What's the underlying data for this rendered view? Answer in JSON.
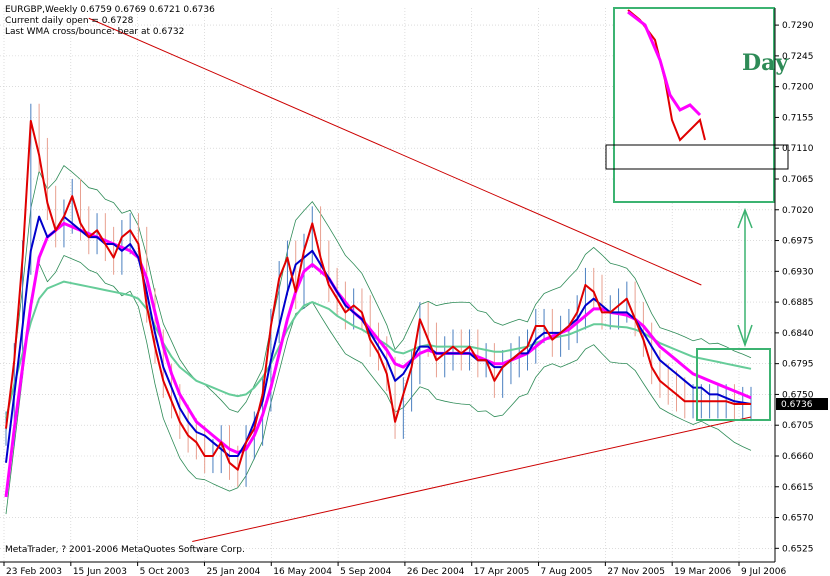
{
  "header": {
    "line1": "EURGBP,Weekly  0.6759 0.6769 0.6721 0.6736",
    "line2": "Current daily open = 0.6728",
    "line3": "Last WMA cross/bounce: bear at 0.6732"
  },
  "footer": {
    "copyright": "MetaTrader, ? 2001-2006 MetaQuotes Software Corp."
  },
  "inset": {
    "label": "Day"
  },
  "last_price_label": "0.6736",
  "colors": {
    "background": "#FFFFFF",
    "grid": "#C8C8C8",
    "candle": "#4A7FC0",
    "candle_bear": "#E8A090",
    "wma_fast": "#E00000",
    "wma_slow": "#0000CC",
    "wma_mid": "#FF00FF",
    "sma_long": "#66CC99",
    "bands": "#2E8B57",
    "trendline": "#CC0000",
    "box": "#3CB371"
  },
  "chart_data": {
    "type": "line",
    "symbol": "EURGBP",
    "timeframe": "Weekly",
    "ylim": [
      0.6505,
      0.7315
    ],
    "grid": true,
    "y_ticks": [
      "0.7290",
      "0.7245",
      "0.7200",
      "0.7155",
      "0.7110",
      "0.7065",
      "0.7020",
      "0.6975",
      "0.6930",
      "0.6885",
      "0.6840",
      "0.6795",
      "0.6750",
      "0.6705",
      "0.6660",
      "0.6615",
      "0.6570",
      "0.6525"
    ],
    "x_ticks": [
      "23 Feb 2003",
      "15 Jun 2003",
      "5 Oct 2003",
      "25 Jan 2004",
      "16 May 2004",
      "5 Sep 2004",
      "26 Dec 2004",
      "17 Apr 2005",
      "7 Aug 2005",
      "27 Nov 2005",
      "19 Mar 2006",
      "9 Jul 2006"
    ],
    "x": [
      0,
      2,
      4,
      6,
      8,
      10,
      12,
      14,
      16,
      18,
      20,
      22,
      24,
      26,
      28,
      30,
      32,
      34,
      36,
      38,
      40,
      42,
      44,
      46,
      48,
      50,
      52,
      54,
      56,
      58,
      60,
      62,
      64,
      66,
      68,
      70,
      72,
      74,
      76,
      78,
      80,
      82,
      84,
      86,
      88,
      90,
      92,
      94,
      96,
      98,
      100,
      102,
      104,
      106,
      108,
      110,
      112,
      114,
      116,
      118,
      120,
      122,
      124,
      126,
      128,
      130,
      132,
      134,
      136,
      138,
      140,
      142,
      144,
      146,
      148,
      150,
      152,
      154,
      156,
      158,
      160,
      162,
      164,
      166,
      168,
      170,
      172,
      174,
      176,
      178,
      180
    ],
    "series": [
      {
        "name": "",
        "values": [
          0.67,
          0.68,
          0.695,
          0.715,
          0.71,
          0.703,
          0.699,
          0.701,
          0.704,
          0.7,
          0.698,
          0.699,
          0.697,
          0.695,
          0.698,
          0.699,
          0.697,
          0.688,
          0.682,
          0.677,
          0.674,
          0.671,
          0.669,
          0.668,
          0.666,
          0.666,
          0.668,
          0.665,
          0.664,
          0.668,
          0.67,
          0.675,
          0.685,
          0.692,
          0.695,
          0.69,
          0.696,
          0.7,
          0.695,
          0.691,
          0.689,
          0.687,
          0.688,
          0.687,
          0.683,
          0.681,
          0.678,
          0.671,
          0.675,
          0.679,
          0.686,
          0.683,
          0.68,
          0.681,
          0.682,
          0.681,
          0.682,
          0.68,
          0.68,
          0.677,
          0.679,
          0.68,
          0.681,
          0.682,
          0.685,
          0.685,
          0.683,
          0.684,
          0.685,
          0.687,
          0.691,
          0.69,
          0.687,
          0.687,
          0.688,
          0.689,
          0.686,
          0.683,
          0.679,
          0.677,
          0.676,
          0.675,
          0.674,
          0.674,
          0.674,
          0.674,
          0.674,
          0.674,
          0.6736,
          0.6736,
          0.6736
        ]
      },
      {
        "name": "",
        "values": [
          0.665,
          0.675,
          0.685,
          0.696,
          0.701,
          0.698,
          0.699,
          0.701,
          0.7,
          0.699,
          0.698,
          0.698,
          0.697,
          0.697,
          0.696,
          0.697,
          0.695,
          0.69,
          0.684,
          0.679,
          0.676,
          0.673,
          0.671,
          0.6695,
          0.669,
          0.668,
          0.667,
          0.666,
          0.666,
          0.668,
          0.671,
          0.674,
          0.68,
          0.685,
          0.69,
          0.694,
          0.695,
          0.696,
          0.694,
          0.692,
          0.69,
          0.688,
          0.687,
          0.686,
          0.684,
          0.682,
          0.68,
          0.677,
          0.678,
          0.68,
          0.682,
          0.682,
          0.681,
          0.681,
          0.681,
          0.681,
          0.681,
          0.68,
          0.68,
          0.679,
          0.679,
          0.68,
          0.681,
          0.681,
          0.683,
          0.684,
          0.684,
          0.684,
          0.685,
          0.686,
          0.688,
          0.689,
          0.688,
          0.687,
          0.687,
          0.687,
          0.686,
          0.684,
          0.682,
          0.68,
          0.679,
          0.678,
          0.677,
          0.676,
          0.676,
          0.675,
          0.675,
          0.6745,
          0.674,
          0.6738,
          0.6736
        ]
      },
      {
        "name": "",
        "values": [
          0.66,
          0.67,
          0.679,
          0.688,
          0.695,
          0.698,
          0.699,
          0.7,
          0.6995,
          0.699,
          0.6985,
          0.698,
          0.6975,
          0.697,
          0.6965,
          0.696,
          0.695,
          0.692,
          0.687,
          0.682,
          0.678,
          0.675,
          0.673,
          0.671,
          0.67,
          0.669,
          0.668,
          0.667,
          0.6665,
          0.667,
          0.669,
          0.672,
          0.676,
          0.681,
          0.686,
          0.69,
          0.693,
          0.694,
          0.693,
          0.692,
          0.69,
          0.6885,
          0.687,
          0.686,
          0.6845,
          0.683,
          0.6815,
          0.6795,
          0.679,
          0.68,
          0.681,
          0.6815,
          0.681,
          0.681,
          0.681,
          0.681,
          0.681,
          0.6805,
          0.68,
          0.6795,
          0.6795,
          0.68,
          0.6805,
          0.681,
          0.682,
          0.683,
          0.6835,
          0.684,
          0.6845,
          0.6855,
          0.6865,
          0.6875,
          0.6875,
          0.687,
          0.6868,
          0.6866,
          0.686,
          0.685,
          0.6835,
          0.682,
          0.681,
          0.68,
          0.679,
          0.678,
          0.6775,
          0.677,
          0.6765,
          0.676,
          0.6755,
          0.675,
          0.6745
        ]
      }
    ],
    "trendlines": [
      {
        "x": [
          20,
          168
        ],
        "y": [
          0.73,
          0.691
        ]
      },
      {
        "x": [
          45,
          180
        ],
        "y": [
          0.6535,
          0.6717
        ]
      }
    ],
    "last_price": 0.6736
  }
}
